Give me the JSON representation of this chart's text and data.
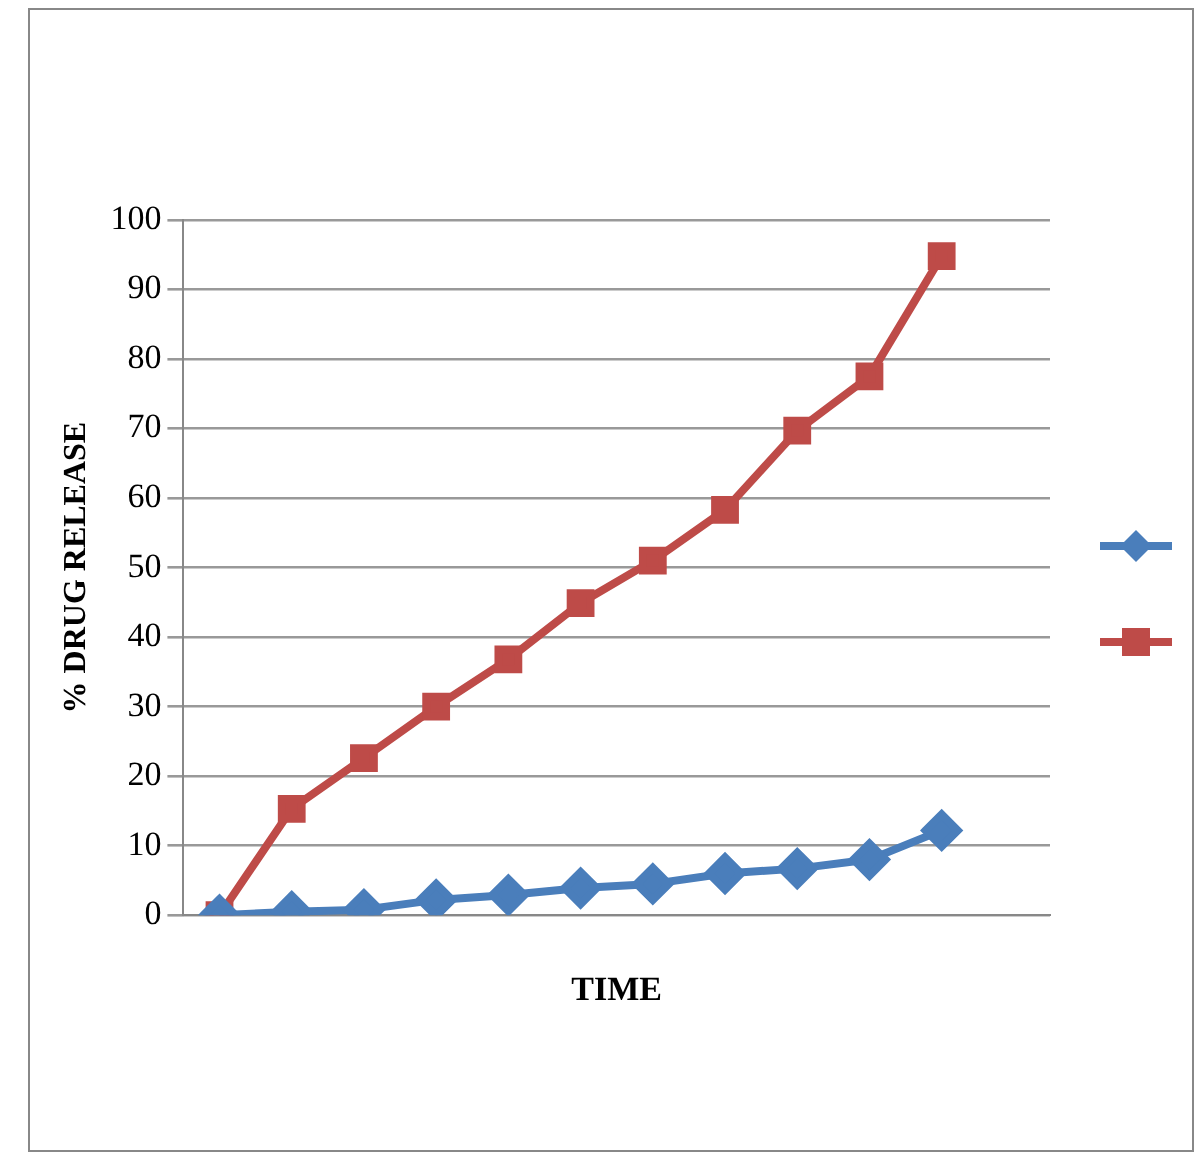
{
  "chart_data": {
    "type": "line",
    "xlabel": "TIME",
    "ylabel": "% DRUG RELEASE",
    "categories": [
      null,
      null,
      null,
      null,
      null,
      null,
      null,
      null,
      null,
      null,
      null,
      null
    ],
    "series": [
      {
        "color": "#4a7ebb",
        "marker": "diamond",
        "values": [
          0,
          0.5,
          0.8,
          2.2,
          2.9,
          3.9,
          4.5,
          6,
          6.7,
          8,
          12.2,
          null
        ]
      },
      {
        "color": "#be4b48",
        "marker": "square",
        "values": [
          0,
          15.3,
          22.6,
          30,
          36.8,
          44.9,
          51,
          58.3,
          69.7,
          77.5,
          94.8,
          null
        ]
      }
    ],
    "ylim": [
      0,
      100
    ],
    "yticks": [
      0,
      10,
      20,
      30,
      40,
      50,
      60,
      70,
      80,
      90,
      100
    ],
    "grid": "y",
    "tick_labels": "y"
  }
}
